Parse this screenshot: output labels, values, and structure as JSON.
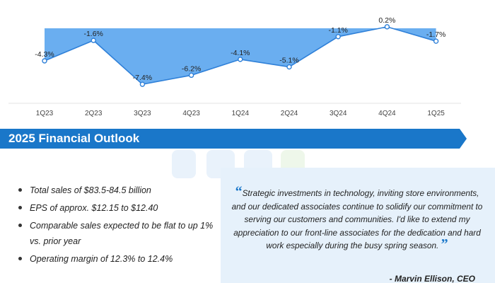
{
  "chart_data": {
    "type": "area",
    "categories": [
      "1Q23",
      "2Q23",
      "3Q23",
      "4Q23",
      "1Q24",
      "2Q24",
      "3Q24",
      "4Q24",
      "1Q25"
    ],
    "values": [
      -4.3,
      -1.6,
      -7.4,
      -6.2,
      -4.1,
      -5.1,
      -1.1,
      0.2,
      -1.7
    ],
    "data_labels": [
      "-4.3%",
      "-1.6%",
      "-7.4%",
      "-6.2%",
      "-4.1%",
      "-5.1%",
      "-1.1%",
      "0.2%",
      "-1.7%"
    ],
    "title": "",
    "xlabel": "",
    "ylabel": "",
    "ylim": [
      -8,
      0.5
    ],
    "grid": false,
    "colors": {
      "fill": "#6aaef0",
      "line": "#2f80d8",
      "marker_fill": "#ffffff"
    }
  },
  "outlook": {
    "title": "2025 Financial Outlook",
    "bullets": [
      "Total sales of $83.5-84.5 billion",
      "EPS of approx. $12.15 to $12.40",
      "Comparable sales expected to be flat to up 1% vs. prior year",
      "Operating margin of 12.3% to 12.4%"
    ]
  },
  "quote": {
    "open_mark": "“",
    "close_mark": "”",
    "text": "Strategic investments in technology, inviting store environments, and our dedicated associates continue to solidify our commitment to serving our customers and communities. I'd like to extend my appreciation to our front-line associates for the dedication and hard work especially during the busy spring season.",
    "author": "- Marvin Ellison, CEO"
  },
  "colors": {
    "banner": "#1a77c9",
    "quote_bg": "#e6f1fb",
    "accent": "#1a77c9"
  }
}
